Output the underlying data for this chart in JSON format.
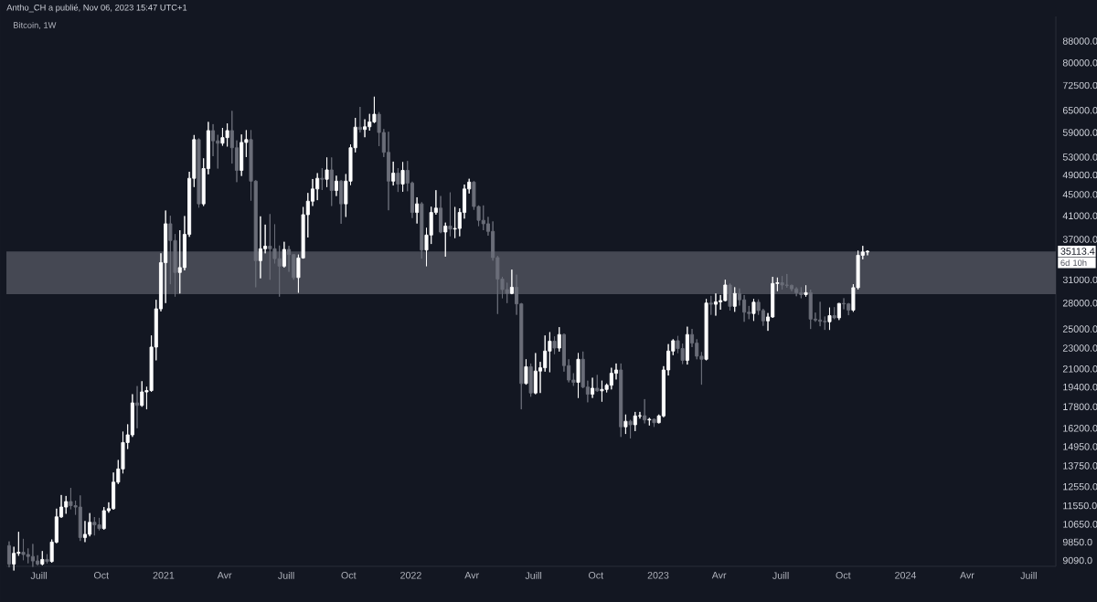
{
  "chart_data": {
    "type": "candlestick",
    "title": "Bitcoin, 1W",
    "subtitle": "Antho_CH a publié, Nov 06, 2023 15:47 UTC+1",
    "x": [
      "2020-05-18",
      "2020-05-25",
      "2020-06-01",
      "2020-06-08",
      "2020-06-15",
      "2020-06-22",
      "2020-06-29",
      "2020-07-06",
      "2020-07-13",
      "2020-07-20",
      "2020-07-27",
      "2020-08-03",
      "2020-08-10",
      "2020-08-17",
      "2020-08-24",
      "2020-08-31",
      "2020-09-07",
      "2020-09-14",
      "2020-09-21",
      "2020-09-28",
      "2020-10-05",
      "2020-10-12",
      "2020-10-19",
      "2020-10-26",
      "2020-11-02",
      "2020-11-09",
      "2020-11-16",
      "2020-11-23",
      "2020-11-30",
      "2020-12-07",
      "2020-12-14",
      "2020-12-21",
      "2020-12-28",
      "2021-01-04",
      "2021-01-11",
      "2021-01-18",
      "2021-01-25",
      "2021-02-01",
      "2021-02-08",
      "2021-02-15",
      "2021-02-22",
      "2021-03-01",
      "2021-03-08",
      "2021-03-15",
      "2021-03-22",
      "2021-03-29",
      "2021-04-05",
      "2021-04-12",
      "2021-04-19",
      "2021-04-26",
      "2021-05-03",
      "2021-05-10",
      "2021-05-17",
      "2021-05-24",
      "2021-05-31",
      "2021-06-07",
      "2021-06-14",
      "2021-06-21",
      "2021-06-28",
      "2021-07-05",
      "2021-07-12",
      "2021-07-19",
      "2021-07-26",
      "2021-08-02",
      "2021-08-09",
      "2021-08-16",
      "2021-08-23",
      "2021-08-30",
      "2021-09-06",
      "2021-09-13",
      "2021-09-20",
      "2021-09-27",
      "2021-10-04",
      "2021-10-11",
      "2021-10-18",
      "2021-10-25",
      "2021-11-01",
      "2021-11-08",
      "2021-11-15",
      "2021-11-22",
      "2021-11-29",
      "2021-12-06",
      "2021-12-13",
      "2021-12-20",
      "2021-12-27",
      "2022-01-03",
      "2022-01-10",
      "2022-01-17",
      "2022-01-24",
      "2022-01-31",
      "2022-02-07",
      "2022-02-14",
      "2022-02-21",
      "2022-02-28",
      "2022-03-07",
      "2022-03-14",
      "2022-03-21",
      "2022-03-28",
      "2022-04-04",
      "2022-04-11",
      "2022-04-18",
      "2022-04-25",
      "2022-05-02",
      "2022-05-09",
      "2022-05-16",
      "2022-05-23",
      "2022-05-30",
      "2022-06-06",
      "2022-06-13",
      "2022-06-20",
      "2022-06-27",
      "2022-07-04",
      "2022-07-11",
      "2022-07-18",
      "2022-07-25",
      "2022-08-01",
      "2022-08-08",
      "2022-08-15",
      "2022-08-22",
      "2022-08-29",
      "2022-09-05",
      "2022-09-12",
      "2022-09-19",
      "2022-09-26",
      "2022-10-03",
      "2022-10-10",
      "2022-10-17",
      "2022-10-24",
      "2022-10-31",
      "2022-11-07",
      "2022-11-14",
      "2022-11-21",
      "2022-11-28",
      "2022-12-05",
      "2022-12-12",
      "2022-12-19",
      "2022-12-26",
      "2023-01-02",
      "2023-01-09",
      "2023-01-16",
      "2023-01-23",
      "2023-01-30",
      "2023-02-06",
      "2023-02-13",
      "2023-02-20",
      "2023-02-27",
      "2023-03-06",
      "2023-03-13",
      "2023-03-20",
      "2023-03-27",
      "2023-04-03",
      "2023-04-10",
      "2023-04-17",
      "2023-04-24",
      "2023-05-01",
      "2023-05-08",
      "2023-05-15",
      "2023-05-22",
      "2023-05-29",
      "2023-06-05",
      "2023-06-12",
      "2023-06-19",
      "2023-06-26",
      "2023-07-03",
      "2023-07-10",
      "2023-07-17",
      "2023-07-24",
      "2023-07-31",
      "2023-08-07",
      "2023-08-14",
      "2023-08-21",
      "2023-08-28",
      "2023-09-04",
      "2023-09-11",
      "2023-09-18",
      "2023-09-25",
      "2023-10-02",
      "2023-10-09",
      "2023-10-16",
      "2023-10-23",
      "2023-10-30",
      "2023-11-06"
    ],
    "ohlc": [
      [
        9700,
        9880,
        8820,
        8950
      ],
      [
        8950,
        9650,
        8700,
        9380
      ],
      [
        9380,
        10300,
        9280,
        9420
      ],
      [
        9420,
        9990,
        9100,
        9330
      ],
      [
        9330,
        9580,
        8980,
        9250
      ],
      [
        9250,
        9770,
        8840,
        9070
      ],
      [
        9070,
        9300,
        8900,
        8950
      ],
      [
        8950,
        9470,
        8900,
        9130
      ],
      [
        9130,
        9340,
        8970,
        9050
      ],
      [
        9050,
        9960,
        9000,
        9850
      ],
      [
        9850,
        11400,
        9800,
        11000
      ],
      [
        11000,
        12100,
        10950,
        11480
      ],
      [
        11480,
        12050,
        11150,
        11760
      ],
      [
        11760,
        12480,
        11370,
        11550
      ],
      [
        11550,
        11800,
        11100,
        11480
      ],
      [
        11480,
        12080,
        9900,
        10050
      ],
      [
        10050,
        10800,
        9850,
        10190
      ],
      [
        10190,
        11180,
        10100,
        10740
      ],
      [
        10740,
        10990,
        10140,
        10620
      ],
      [
        10620,
        10950,
        10370,
        10450
      ],
      [
        10450,
        11480,
        10400,
        11300
      ],
      [
        11300,
        11720,
        11200,
        11400
      ],
      [
        11400,
        13350,
        11350,
        12800
      ],
      [
        12800,
        14100,
        12700,
        13560
      ],
      [
        13560,
        15960,
        13300,
        15220
      ],
      [
        15220,
        16480,
        14800,
        15740
      ],
      [
        15740,
        18800,
        15600,
        18100
      ],
      [
        18100,
        19480,
        16200,
        17900
      ],
      [
        17900,
        19900,
        17800,
        18990
      ],
      [
        18990,
        19420,
        17600,
        19100
      ],
      [
        19100,
        24300,
        19000,
        23100
      ],
      [
        23100,
        28400,
        21800,
        27300
      ],
      [
        27300,
        34800,
        27000,
        33400
      ],
      [
        33400,
        41950,
        28000,
        39600
      ],
      [
        39600,
        41000,
        30400,
        36800
      ],
      [
        36800,
        37850,
        28800,
        32000
      ],
      [
        32000,
        38500,
        29200,
        32700
      ],
      [
        32700,
        40950,
        32300,
        37800
      ],
      [
        37800,
        49700,
        37400,
        48300
      ],
      [
        48300,
        58350,
        46500,
        57200
      ],
      [
        57200,
        57500,
        42500,
        43200
      ],
      [
        43200,
        52700,
        42800,
        50400
      ],
      [
        50400,
        61800,
        49150,
        59500
      ],
      [
        59500,
        61200,
        53200,
        56900
      ],
      [
        56900,
        58400,
        50400,
        56300
      ],
      [
        56300,
        60200,
        55700,
        57700
      ],
      [
        57700,
        61400,
        55500,
        59500
      ],
      [
        59500,
        64850,
        51500,
        55200
      ],
      [
        55200,
        57000,
        47500,
        50000
      ],
      [
        50000,
        58500,
        48800,
        56500
      ],
      [
        56500,
        59600,
        53000,
        57200
      ],
      [
        57200,
        59600,
        43800,
        47700
      ],
      [
        47700,
        47900,
        30000,
        33700
      ],
      [
        33700,
        40900,
        31200,
        35500
      ],
      [
        35500,
        39450,
        34800,
        35900
      ],
      [
        35900,
        41300,
        31000,
        35500
      ],
      [
        35500,
        39500,
        33300,
        34000
      ],
      [
        34000,
        36000,
        28800,
        32900
      ],
      [
        32900,
        36600,
        32700,
        35400
      ],
      [
        35400,
        35950,
        32100,
        34600
      ],
      [
        34600,
        34650,
        31000,
        31300
      ],
      [
        31300,
        34600,
        29300,
        34100
      ],
      [
        34100,
        42600,
        34000,
        41200
      ],
      [
        41200,
        45300,
        37300,
        43700
      ],
      [
        43700,
        48150,
        42800,
        46100
      ],
      [
        46100,
        49400,
        43900,
        48300
      ],
      [
        48300,
        50500,
        45900,
        48100
      ],
      [
        48100,
        52900,
        46500,
        50100
      ],
      [
        50100,
        52900,
        42800,
        45800
      ],
      [
        45800,
        48850,
        44700,
        47700
      ],
      [
        47700,
        47900,
        39600,
        43200
      ],
      [
        43200,
        49200,
        40800,
        47700
      ],
      [
        47700,
        56000,
        46900,
        55200
      ],
      [
        55200,
        62900,
        54100,
        60400
      ],
      [
        60400,
        66000,
        59000,
        59800
      ],
      [
        59800,
        62500,
        57800,
        60500
      ],
      [
        60500,
        64000,
        59500,
        61800
      ],
      [
        61800,
        69000,
        61500,
        63900
      ],
      [
        63900,
        64500,
        55600,
        59000
      ],
      [
        59000,
        59900,
        53000,
        54100
      ],
      [
        54100,
        59200,
        42000,
        47700
      ],
      [
        47700,
        51950,
        46800,
        49400
      ],
      [
        49400,
        50500,
        45500,
        47100
      ],
      [
        47100,
        51850,
        45550,
        50000
      ],
      [
        50000,
        52100,
        45650,
        47300
      ],
      [
        47300,
        47600,
        40600,
        41600
      ],
      [
        41600,
        44450,
        39650,
        43200
      ],
      [
        43200,
        43500,
        34000,
        35300
      ],
      [
        35300,
        38900,
        32900,
        37700
      ],
      [
        37700,
        42650,
        36250,
        41600
      ],
      [
        41600,
        45850,
        41200,
        42400
      ],
      [
        42400,
        44700,
        38000,
        38200
      ],
      [
        38200,
        39800,
        34300,
        39200
      ],
      [
        39200,
        45400,
        37500,
        38700
      ],
      [
        38700,
        42600,
        37200,
        38800
      ],
      [
        38800,
        42350,
        37500,
        41600
      ],
      [
        41600,
        47000,
        40500,
        46100
      ],
      [
        46100,
        48200,
        45200,
        47500
      ],
      [
        47500,
        47700,
        42100,
        42700
      ],
      [
        42700,
        42900,
        39200,
        40200
      ],
      [
        40200,
        42900,
        38500,
        39600
      ],
      [
        39600,
        40800,
        37600,
        38300
      ],
      [
        38300,
        40000,
        33700,
        34150
      ],
      [
        34150,
        34400,
        26700,
        31100
      ],
      [
        31100,
        31400,
        28600,
        29700
      ],
      [
        29700,
        30600,
        28000,
        29200
      ],
      [
        29200,
        32400,
        29100,
        30000
      ],
      [
        30000,
        31700,
        26600,
        27900
      ],
      [
        27900,
        28000,
        17600,
        19700
      ],
      [
        19700,
        21900,
        19600,
        21200
      ],
      [
        21200,
        21500,
        18600,
        18900
      ],
      [
        18900,
        22500,
        18800,
        20800
      ],
      [
        20800,
        21650,
        18900,
        21100
      ],
      [
        21100,
        24300,
        20750,
        22700
      ],
      [
        22700,
        24650,
        20700,
        23700
      ],
      [
        23700,
        24200,
        22400,
        23000
      ],
      [
        23000,
        25200,
        22650,
        24400
      ],
      [
        24400,
        24500,
        20750,
        21300
      ],
      [
        21300,
        21900,
        19800,
        20000
      ],
      [
        20000,
        20600,
        19500,
        19800
      ],
      [
        19800,
        22500,
        18500,
        21900
      ],
      [
        21900,
        22650,
        19300,
        19400
      ],
      [
        19400,
        19950,
        18150,
        18800
      ],
      [
        18800,
        20200,
        18500,
        19300
      ],
      [
        19300,
        20450,
        19000,
        19080
      ],
      [
        19080,
        19950,
        18200,
        19200
      ],
      [
        19200,
        19700,
        18950,
        19550
      ],
      [
        19550,
        21100,
        19200,
        20600
      ],
      [
        20600,
        21500,
        20050,
        20900
      ],
      [
        20900,
        21500,
        15600,
        16300
      ],
      [
        16300,
        17200,
        15800,
        16700
      ],
      [
        16700,
        16800,
        15500,
        16450
      ],
      [
        16450,
        17400,
        16000,
        17100
      ],
      [
        17100,
        17400,
        16900,
        17110
      ],
      [
        17110,
        18400,
        16550,
        16800
      ],
      [
        16800,
        16950,
        16400,
        16850
      ],
      [
        16850,
        16900,
        16300,
        16600
      ],
      [
        16600,
        17200,
        16550,
        17100
      ],
      [
        17100,
        21250,
        17000,
        20900
      ],
      [
        20900,
        23400,
        20400,
        22700
      ],
      [
        22700,
        23900,
        22300,
        23750
      ],
      [
        23750,
        24250,
        22500,
        22950
      ],
      [
        22950,
        23450,
        21450,
        21800
      ],
      [
        21800,
        25250,
        21400,
        24400
      ],
      [
        24400,
        25000,
        23100,
        23500
      ],
      [
        23500,
        23900,
        21900,
        22200
      ],
      [
        22200,
        22600,
        19600,
        21900
      ],
      [
        21900,
        28500,
        21800,
        28000
      ],
      [
        28000,
        28900,
        26600,
        27850
      ],
      [
        27850,
        29200,
        26500,
        28150
      ],
      [
        28150,
        29000,
        27200,
        28300
      ],
      [
        28300,
        31000,
        28200,
        30300
      ],
      [
        30300,
        30500,
        27100,
        27600
      ],
      [
        27600,
        30000,
        26950,
        29200
      ],
      [
        29200,
        29850,
        27700,
        28400
      ],
      [
        28400,
        29000,
        25800,
        26900
      ],
      [
        26900,
        27650,
        26100,
        26750
      ],
      [
        26750,
        28500,
        25900,
        28100
      ],
      [
        28100,
        28450,
        26600,
        27100
      ],
      [
        27100,
        27300,
        25350,
        25900
      ],
      [
        25900,
        26800,
        24800,
        26350
      ],
      [
        26350,
        31400,
        26250,
        30500
      ],
      [
        30500,
        31300,
        29500,
        30600
      ],
      [
        30600,
        31500,
        29700,
        30300
      ],
      [
        30300,
        31800,
        29950,
        30250
      ],
      [
        30250,
        30350,
        29500,
        29800
      ],
      [
        29800,
        30000,
        28850,
        29300
      ],
      [
        29300,
        30000,
        28600,
        29050
      ],
      [
        29050,
        30250,
        28800,
        29300
      ],
      [
        29300,
        29700,
        25000,
        26100
      ],
      [
        26100,
        26850,
        25800,
        26000
      ],
      [
        26000,
        28150,
        25300,
        25850
      ],
      [
        25850,
        26400,
        24900,
        25800
      ],
      [
        25800,
        27450,
        24900,
        26500
      ],
      [
        26500,
        27500,
        26100,
        26250
      ],
      [
        26250,
        28000,
        26000,
        27950
      ],
      [
        27950,
        28600,
        27250,
        27900
      ],
      [
        27900,
        28000,
        26550,
        27150
      ],
      [
        27150,
        30400,
        26950,
        29950
      ],
      [
        29950,
        35200,
        29700,
        34500
      ],
      [
        34500,
        35950,
        33900,
        35000
      ],
      [
        35000,
        35250,
        34500,
        35113.4
      ]
    ],
    "colors": [
      "#6b6e79",
      "#ffffff",
      "#ffffff",
      "#6b6e79",
      "#6b6e79",
      "#6b6e79",
      "#6b6e79",
      "#ffffff",
      "#6b6e79",
      "#ffffff",
      "#ffffff",
      "#ffffff",
      "#ffffff",
      "#6b6e79",
      "#6b6e79",
      "#6b6e79",
      "#ffffff",
      "#ffffff",
      "#6b6e79",
      "#6b6e79",
      "#ffffff",
      "#ffffff",
      "#ffffff",
      "#ffffff",
      "#ffffff",
      "#ffffff",
      "#ffffff",
      "#6b6e79",
      "#ffffff",
      "#ffffff",
      "#ffffff",
      "#ffffff",
      "#ffffff",
      "#ffffff",
      "#6b6e79",
      "#6b6e79",
      "#ffffff",
      "#ffffff",
      "#ffffff",
      "#ffffff",
      "#6b6e79",
      "#ffffff",
      "#ffffff",
      "#6b6e79",
      "#6b6e79",
      "#ffffff",
      "#ffffff",
      "#6b6e79",
      "#6b6e79",
      "#ffffff",
      "#ffffff",
      "#6b6e79",
      "#6b6e79",
      "#ffffff",
      "#ffffff",
      "#6b6e79",
      "#6b6e79",
      "#6b6e79",
      "#ffffff",
      "#6b6e79",
      "#6b6e79",
      "#ffffff",
      "#ffffff",
      "#ffffff",
      "#ffffff",
      "#ffffff",
      "#6b6e79",
      "#ffffff",
      "#6b6e79",
      "#ffffff",
      "#6b6e79",
      "#ffffff",
      "#ffffff",
      "#ffffff",
      "#6b6e79",
      "#ffffff",
      "#ffffff",
      "#ffffff",
      "#6b6e79",
      "#6b6e79",
      "#6b6e79",
      "#ffffff",
      "#6b6e79",
      "#ffffff",
      "#6b6e79",
      "#6b6e79",
      "#ffffff",
      "#6b6e79",
      "#ffffff",
      "#ffffff",
      "#ffffff",
      "#6b6e79",
      "#ffffff",
      "#6b6e79",
      "#ffffff",
      "#ffffff",
      "#ffffff",
      "#ffffff",
      "#6b6e79",
      "#6b6e79",
      "#6b6e79",
      "#6b6e79",
      "#6b6e79",
      "#6b6e79",
      "#6b6e79",
      "#6b6e79",
      "#ffffff",
      "#6b6e79",
      "#6b6e79",
      "#ffffff",
      "#6b6e79",
      "#ffffff",
      "#ffffff",
      "#ffffff",
      "#ffffff",
      "#6b6e79",
      "#ffffff",
      "#6b6e79",
      "#6b6e79",
      "#6b6e79",
      "#ffffff",
      "#6b6e79",
      "#6b6e79",
      "#ffffff",
      "#6b6e79",
      "#ffffff",
      "#ffffff",
      "#ffffff",
      "#ffffff",
      "#6b6e79",
      "#ffffff",
      "#6b6e79",
      "#ffffff",
      "#ffffff",
      "#6b6e79",
      "#ffffff",
      "#6b6e79",
      "#ffffff",
      "#ffffff",
      "#ffffff",
      "#ffffff",
      "#6b6e79",
      "#6b6e79",
      "#ffffff",
      "#6b6e79",
      "#6b6e79",
      "#6b6e79",
      "#ffffff",
      "#6b6e79",
      "#ffffff",
      "#ffffff",
      "#ffffff",
      "#6b6e79",
      "#ffffff",
      "#6b6e79",
      "#6b6e79",
      "#6b6e79",
      "#ffffff",
      "#6b6e79",
      "#6b6e79",
      "#ffffff",
      "#ffffff",
      "#ffffff",
      "#6b6e79",
      "#6b6e79",
      "#6b6e79",
      "#6b6e79",
      "#6b6e79",
      "#ffffff",
      "#6b6e79",
      "#6b6e79",
      "#6b6e79",
      "#6b6e79",
      "#ffffff",
      "#6b6e79",
      "#ffffff",
      "#6b6e79",
      "#6b6e79",
      "#ffffff",
      "#ffffff",
      "#ffffff",
      "#ffffff"
    ],
    "xlim": [
      "2020-05-14",
      "2024-08-10"
    ],
    "xticks": [
      {
        "value": "2020-07-01",
        "label": "Juill"
      },
      {
        "value": "2020-10-01",
        "label": "Oct"
      },
      {
        "value": "2021-01-01",
        "label": "2021"
      },
      {
        "value": "2021-04-01",
        "label": "Avr"
      },
      {
        "value": "2021-07-01",
        "label": "Juill"
      },
      {
        "value": "2021-10-01",
        "label": "Oct"
      },
      {
        "value": "2022-01-01",
        "label": "2022"
      },
      {
        "value": "2022-04-01",
        "label": "Avr"
      },
      {
        "value": "2022-07-01",
        "label": "Juill"
      },
      {
        "value": "2022-10-01",
        "label": "Oct"
      },
      {
        "value": "2023-01-01",
        "label": "2023"
      },
      {
        "value": "2023-04-01",
        "label": "Avr"
      },
      {
        "value": "2023-07-01",
        "label": "Juill"
      },
      {
        "value": "2023-10-01",
        "label": "Oct"
      },
      {
        "value": "2024-01-01",
        "label": "2024"
      },
      {
        "value": "2024-04-01",
        "label": "Avr"
      },
      {
        "value": "2024-07-01",
        "label": "Juill"
      }
    ],
    "ylim": [
      8860,
      98000
    ],
    "yticks": [
      {
        "value": 9090,
        "label": "9090.0"
      },
      {
        "value": 9850,
        "label": "9850.0"
      },
      {
        "value": 10650,
        "label": "10650.0"
      },
      {
        "value": 11550,
        "label": "11550.0"
      },
      {
        "value": 12550,
        "label": "12550.0"
      },
      {
        "value": 13750,
        "label": "13750.0"
      },
      {
        "value": 14950,
        "label": "14950.0"
      },
      {
        "value": 16200,
        "label": "16200.0"
      },
      {
        "value": 17800,
        "label": "17800.0"
      },
      {
        "value": 19400,
        "label": "19400.0"
      },
      {
        "value": 21000,
        "label": "21000.0"
      },
      {
        "value": 23000,
        "label": "23000.0"
      },
      {
        "value": 25000,
        "label": "25000.0"
      },
      {
        "value": 28000,
        "label": "28000.0"
      },
      {
        "value": 31000,
        "label": "31000.0"
      },
      {
        "value": 37000,
        "label": "37000.0"
      },
      {
        "value": 41000,
        "label": "41000.0"
      },
      {
        "value": 45000,
        "label": "45000.0"
      },
      {
        "value": 49000,
        "label": "49000.0"
      },
      {
        "value": 53000,
        "label": "53000.0"
      },
      {
        "value": 59000,
        "label": "59000.0"
      },
      {
        "value": 65000,
        "label": "65000.0"
      },
      {
        "value": 72500,
        "label": "72500.0"
      },
      {
        "value": 80000,
        "label": "80000.0"
      },
      {
        "value": 88000,
        "label": "88000.0"
      }
    ],
    "log": "y",
    "bands": [
      {
        "axis": "y",
        "from": 29100,
        "to": 35100,
        "color": "#454853"
      }
    ],
    "annotations": [
      "35113.4",
      "6d 10h"
    ]
  }
}
